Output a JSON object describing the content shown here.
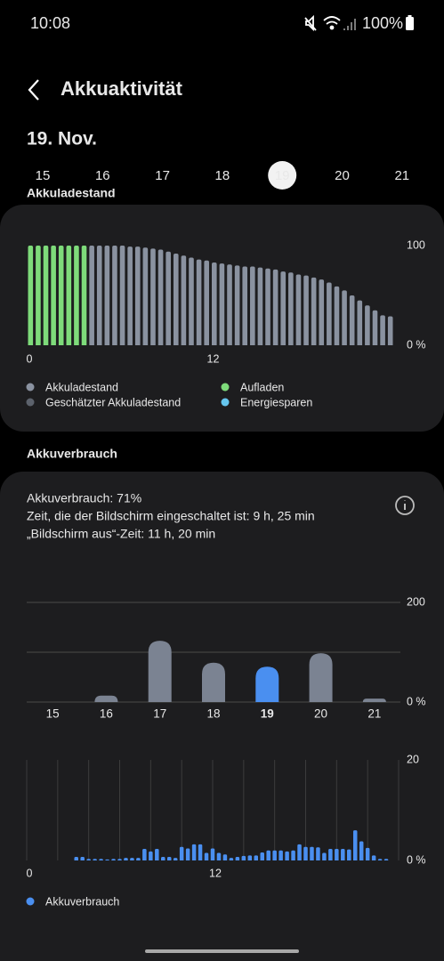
{
  "status_bar": {
    "time": "10:08",
    "battery": "100%"
  },
  "header": {
    "title": "Akkuaktivität",
    "date": "19. Nov."
  },
  "day_tabs": {
    "days": [
      "15",
      "16",
      "17",
      "18",
      "19",
      "20",
      "21"
    ],
    "selected": 4
  },
  "sections": {
    "battery_level": "Akkuladestand",
    "usage": "Akkuverbrauch"
  },
  "usage_summary": [
    "Akkuverbrauch: 71%",
    "Zeit, die der Bildschirm eingeschaltet ist: 9 h, 25 min",
    "„Bildschirm aus“-Zeit: 11 h, 20 min"
  ],
  "chart_data": [
    {
      "type": "bar",
      "x": [
        0.25,
        0.75,
        1.25,
        1.75,
        2.25,
        2.75,
        3.25,
        3.75,
        4.25,
        4.75,
        5.25,
        5.75,
        6.25,
        6.75,
        7.25,
        7.75,
        8.25,
        8.75,
        9.25,
        9.75,
        10.25,
        10.75,
        11.25,
        11.75,
        12.25,
        12.75,
        13.25,
        13.75,
        14.25,
        14.75,
        15.25,
        15.75,
        16.25,
        16.75,
        17.25,
        17.75,
        18.25,
        18.75,
        19.25,
        19.75,
        20.25,
        20.75,
        21.25,
        21.75,
        22.25,
        22.75,
        23.25,
        23.75
      ],
      "series": [
        {
          "name": "Akkuladestand",
          "color": "#8a92a0",
          "values": [
            null,
            null,
            null,
            null,
            null,
            null,
            null,
            null,
            100,
            100,
            100,
            100,
            100,
            99,
            99,
            98,
            97,
            96,
            94,
            92,
            90,
            88,
            86,
            85,
            83,
            82,
            81,
            80,
            79,
            79,
            78,
            77,
            76,
            74,
            73,
            71,
            70,
            68,
            66,
            63,
            59,
            55,
            50,
            45,
            40,
            35,
            30,
            29
          ]
        },
        {
          "name": "Geschätzter Akkuladestand",
          "color": "#5c626c",
          "values": [
            null,
            null,
            null,
            null,
            null,
            null,
            null,
            null,
            null,
            null,
            null,
            null,
            null,
            null,
            null,
            null,
            null,
            null,
            null,
            null,
            null,
            null,
            null,
            null,
            null,
            null,
            null,
            null,
            null,
            null,
            null,
            null,
            null,
            null,
            null,
            null,
            null,
            null,
            null,
            null,
            null,
            null,
            null,
            null,
            null,
            null,
            null,
            null
          ]
        },
        {
          "name": "Aufladen",
          "color": "#7edb7a",
          "values": [
            100,
            100,
            100,
            100,
            100,
            100,
            100,
            100,
            null,
            null,
            null,
            null,
            null,
            null,
            null,
            null,
            null,
            null,
            null,
            null,
            null,
            null,
            null,
            null,
            null,
            null,
            null,
            null,
            null,
            null,
            null,
            null,
            null,
            null,
            null,
            null,
            null,
            null,
            null,
            null,
            null,
            null,
            null,
            null,
            null,
            null,
            null,
            null
          ]
        },
        {
          "name": "Energiesparen",
          "color": "#66c6ee",
          "values": [
            null,
            null,
            null,
            null,
            null,
            null,
            null,
            null,
            null,
            null,
            null,
            null,
            null,
            null,
            null,
            null,
            null,
            null,
            null,
            null,
            null,
            null,
            null,
            null,
            null,
            null,
            null,
            null,
            null,
            null,
            null,
            null,
            null,
            null,
            null,
            null,
            null,
            null,
            null,
            null,
            null,
            null,
            null,
            null,
            null,
            null,
            null,
            null
          ]
        }
      ],
      "xlim": [
        0,
        24
      ],
      "xticks": [
        0,
        12
      ],
      "ylim": [
        0,
        100
      ],
      "yticks": [
        {
          "value": 0,
          "label": "0 %"
        },
        100
      ]
    },
    {
      "type": "bar",
      "categories": [
        "15",
        "16",
        "17",
        "18",
        "19",
        "20",
        "21"
      ],
      "values": [
        0,
        13,
        123,
        79,
        71,
        98,
        7
      ],
      "color": "#7b8392",
      "highlight_index": 4,
      "highlight_color": "#4a8ff0",
      "ylim": [
        0,
        200
      ],
      "yticks": [
        {
          "value": 0,
          "label": "0 %"
        },
        200
      ],
      "grid_lines": [
        0,
        100,
        200
      ]
    },
    {
      "type": "bar",
      "x": [
        3.2,
        3.6,
        4.0,
        4.4,
        4.8,
        5.2,
        5.6,
        6.0,
        6.4,
        6.8,
        7.2,
        7.6,
        8.0,
        8.4,
        8.8,
        9.2,
        9.6,
        10.0,
        10.4,
        10.8,
        11.2,
        11.6,
        12.0,
        12.4,
        12.8,
        13.2,
        13.6,
        14.0,
        14.4,
        14.8,
        15.2,
        15.6,
        16.0,
        16.4,
        16.8,
        17.2,
        17.6,
        18.0,
        18.4,
        18.8,
        19.2,
        19.6,
        20.0,
        20.4,
        20.8,
        21.2,
        21.6,
        22.0,
        22.4,
        22.8,
        23.2
      ],
      "series": [
        {
          "name": "Akkuverbrauch",
          "color": "#4a8ff0",
          "values": [
            0.7,
            0.7,
            0.3,
            0.3,
            0.3,
            0.2,
            0.3,
            0.3,
            0.5,
            0.5,
            0.5,
            2.3,
            1.8,
            2.3,
            0.7,
            0.7,
            0.5,
            2.7,
            2.4,
            3.2,
            3.2,
            1.5,
            2.4,
            1.5,
            1.2,
            0.5,
            0.7,
            0.9,
            1.0,
            1.0,
            1.6,
            2.0,
            2.0,
            2.0,
            1.8,
            2.0,
            3.2,
            2.7,
            2.7,
            2.6,
            1.5,
            2.3,
            2.3,
            2.3,
            2.2,
            6.0,
            3.8,
            2.5,
            1.0,
            0.3,
            0.3
          ]
        }
      ],
      "xlim": [
        0,
        24
      ],
      "xticks": [
        0,
        12
      ],
      "x_grid": [
        0,
        2,
        4,
        6,
        8,
        10,
        12,
        14,
        16,
        18,
        20,
        22,
        24
      ],
      "ylim": [
        0,
        20
      ],
      "yticks": [
        {
          "value": 0,
          "label": "0 %"
        },
        20
      ]
    }
  ]
}
